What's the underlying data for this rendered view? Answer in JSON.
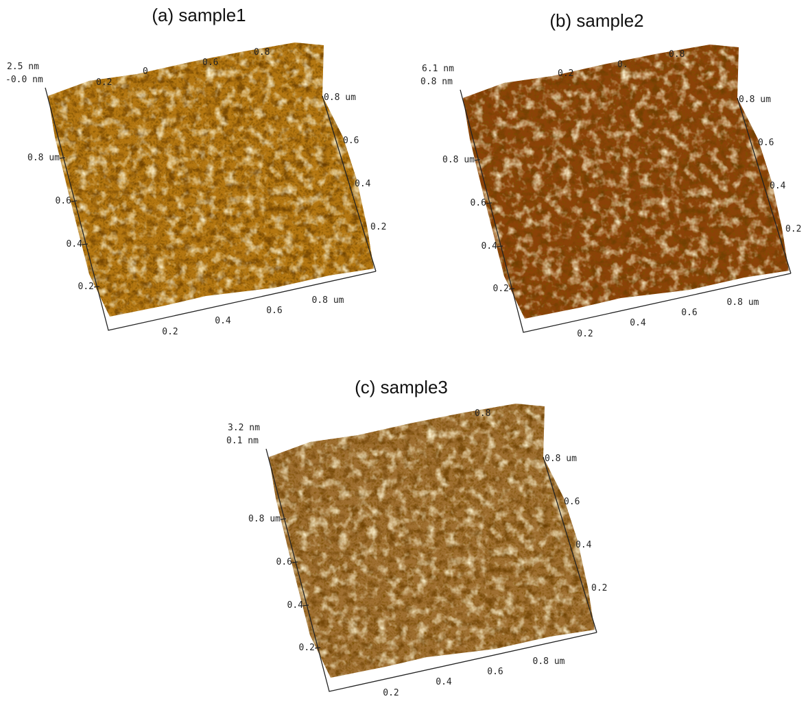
{
  "panels": [
    {
      "title": "(a) sample1",
      "z_max": "2.5 nm",
      "z_min": "-0.0 nm",
      "left_axis_labels": [
        "0.8 um",
        "0.6",
        "0.4",
        "0.2"
      ],
      "bottom_axis_labels": [
        "0.2",
        "0.4",
        "0.6",
        "0.8 um"
      ],
      "right_axis_labels": [
        "0.8 um",
        "0.6",
        "0.4",
        "0.2"
      ],
      "top_axis_labels": [
        "0.2",
        "0",
        "0.6",
        "0.8"
      ]
    },
    {
      "title": "(b) sample2",
      "z_max": "6.1 nm",
      "z_min": "0.8 nm",
      "left_axis_labels": [
        "0.8 um",
        "0.6",
        "0.4",
        "0.2"
      ],
      "bottom_axis_labels": [
        "0.2",
        "0.4",
        "0.6",
        "0.8 um"
      ],
      "right_axis_labels": [
        "0.8 um",
        "0.6",
        "0.4",
        "0.2"
      ],
      "top_axis_labels": [
        "0.2",
        "0.",
        "0.8"
      ]
    },
    {
      "title": "(c) sample3",
      "z_max": "3.2 nm",
      "z_min": "0.1 nm",
      "left_axis_labels": [
        "0.8 um",
        "0.6",
        "0.4",
        "0.2"
      ],
      "bottom_axis_labels": [
        "0.2",
        "0.4",
        "0.6",
        "0.8 um"
      ],
      "right_axis_labels": [
        "0.8 um",
        "0.6",
        "0.4",
        "0.2"
      ],
      "top_axis_labels": [
        "0.8"
      ]
    }
  ]
}
